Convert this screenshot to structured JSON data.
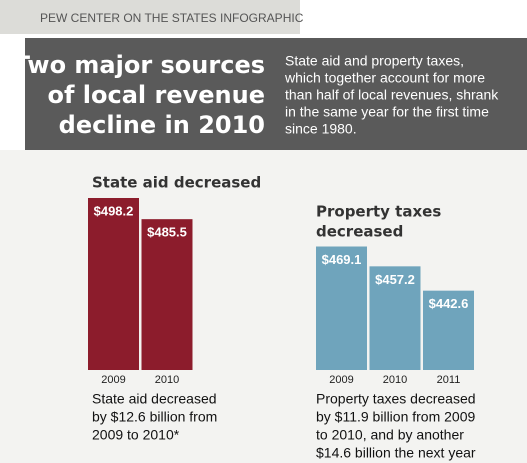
{
  "header": {
    "source": "PEW CENTER ON THE STATES INFOGRAPHIC",
    "title_lines": [
      "Two major sources",
      "of local revenue",
      "decline in 2010"
    ],
    "subtitle_lines": [
      "State aid and property taxes,",
      "which together account for more",
      "than half of local revenues, shrank",
      "in the same year for the first time",
      "since 1980."
    ]
  },
  "chart_data": [
    {
      "type": "bar",
      "title_lines": [
        "State aid decreased"
      ],
      "categories": [
        "2009",
        "2010"
      ],
      "values": [
        498.2,
        485.5
      ],
      "value_labels": [
        "$498.2",
        "$485.5"
      ],
      "color": "#8c1c2c",
      "ylim": [
        395,
        500
      ],
      "caption_lines": [
        "State aid decreased",
        "by $12.6 billion from",
        "2009 to 2010*"
      ]
    },
    {
      "type": "bar",
      "title_lines": [
        "Property taxes",
        "decreased"
      ],
      "categories": [
        "2009",
        "2010",
        "2011"
      ],
      "values": [
        469.1,
        457.2,
        442.6
      ],
      "value_labels": [
        "$469.1",
        "$457.2",
        "$442.6"
      ],
      "color": "#6fa4bc",
      "ylim": [
        395,
        500
      ],
      "caption_lines": [
        "Property taxes decreased",
        "by $11.9 billion from 2009",
        "to 2010, and by another",
        "$14.6 billion the next year"
      ]
    }
  ]
}
